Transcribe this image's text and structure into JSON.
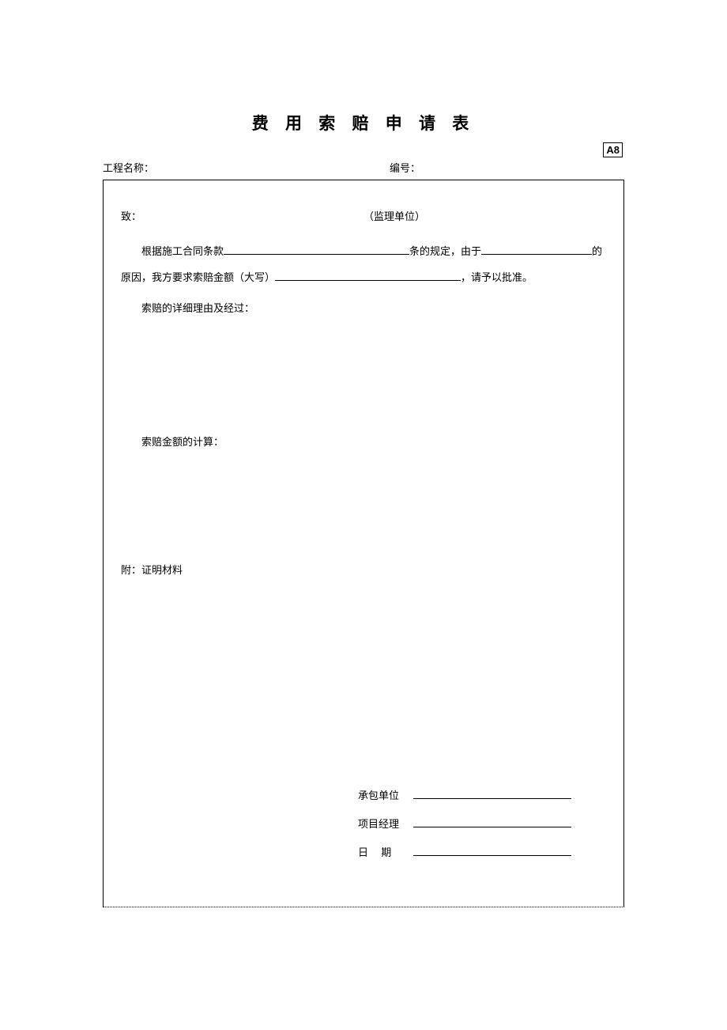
{
  "colors": {
    "background": "#ffffff",
    "text": "#000000",
    "border": "#000000"
  },
  "typography": {
    "title_fontsize": 21,
    "body_fontsize": 13,
    "font_family": "SimSun"
  },
  "form_code": "A8",
  "title": "费 用 索 赔 申 请 表",
  "header": {
    "project_label": "工程名称：",
    "number_label": "编号："
  },
  "body": {
    "to_label": "致：",
    "to_unit": "（监理单位）",
    "line1_part1": "根据施工合同条款",
    "line1_part2": "条的规定，由于",
    "line1_part3": "的",
    "line2_part1": "原因，我方要求索赔金额（大写）",
    "line2_part2": "，请予以批准。",
    "section1": "索赔的详细理由及经过：",
    "section2": "索赔金额的计算：",
    "attach": "附：证明材料"
  },
  "signature": {
    "contractor_label": "承包单位",
    "pm_label": "项目经理",
    "date_label_char1": "日",
    "date_label_char2": "期"
  }
}
